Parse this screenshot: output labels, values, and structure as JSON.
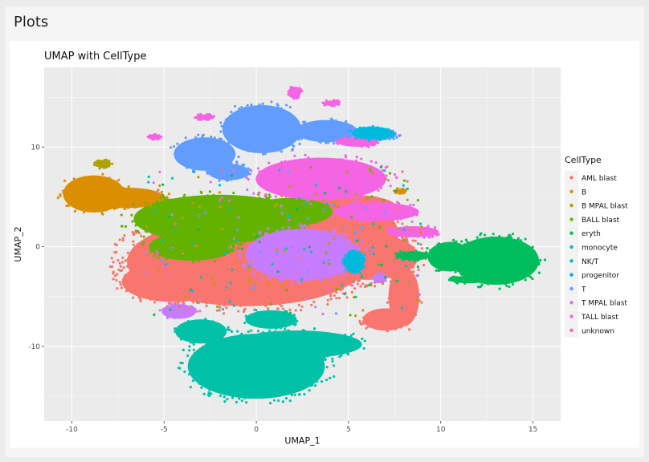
{
  "pane": {
    "title": "Plots"
  },
  "chart_data": {
    "type": "scatter",
    "title": "UMAP with CellType",
    "xlabel": "UMAP_1",
    "ylabel": "UMAP_2",
    "xlim": [
      -11.5,
      16.5
    ],
    "ylim": [
      -17.5,
      18
    ],
    "xticks": [
      -10,
      -5,
      0,
      5,
      10,
      15
    ],
    "xtick_labels": [
      "-10",
      "-5",
      "0",
      "5",
      "10",
      "15"
    ],
    "yticks": [
      -10,
      0,
      10
    ],
    "ytick_labels": [
      "-10",
      "0",
      "10"
    ],
    "grid": true,
    "background": "#ebebeb",
    "legend": {
      "title": "CellType",
      "position": "right",
      "entries": [
        {
          "label": "AML blast",
          "color": "#F8766D"
        },
        {
          "label": "B",
          "color": "#DB8E00"
        },
        {
          "label": "B MPAL blast",
          "color": "#AEA200"
        },
        {
          "label": "BALL blast",
          "color": "#64B200"
        },
        {
          "label": "eryth",
          "color": "#00BD5C"
        },
        {
          "label": "monocyte",
          "color": "#00C1A7"
        },
        {
          "label": "NK/T",
          "color": "#00BADE"
        },
        {
          "label": "progenitor",
          "color": "#00A6FF"
        },
        {
          "label": "T",
          "color": "#619CFF"
        },
        {
          "label": "T MPAL blast",
          "color": "#C77CFF"
        },
        {
          "label": "TALL blast",
          "color": "#F564E3"
        },
        {
          "label": "unknown",
          "color": "#FF64B0"
        }
      ]
    },
    "clusters": [
      {
        "name": "AML blast",
        "color": "#F8766D",
        "shapes": [
          {
            "cx": -0.5,
            "cy": -1.5,
            "rx": 7.0,
            "ry": 4.8
          },
          {
            "cx": 3.5,
            "cy": 1.5,
            "rx": 4.5,
            "ry": 3.5
          },
          {
            "cx": -4.5,
            "cy": -3.5,
            "rx": 3.0,
            "ry": 2.2
          },
          {
            "cx": 6.0,
            "cy": -1.0,
            "rx": 3.0,
            "ry": 2.5
          },
          {
            "cx": 8.0,
            "cy": -5.0,
            "rx": 0.9,
            "ry": 3.2
          },
          {
            "cx": 7.0,
            "cy": -7.3,
            "rx": 1.3,
            "ry": 1.2
          },
          {
            "cx": 5.5,
            "cy": 3.5,
            "rx": 2.5,
            "ry": 1.8
          }
        ]
      },
      {
        "name": "B",
        "color": "#DB8E00",
        "shapes": [
          {
            "cx": -8.8,
            "cy": 5.3,
            "rx": 1.8,
            "ry": 2.0
          },
          {
            "cx": -7.0,
            "cy": 4.9,
            "rx": 2.2,
            "ry": 1.1
          },
          {
            "cx": -5.0,
            "cy": 4.3,
            "rx": 1.2,
            "ry": 0.6
          },
          {
            "cx": 7.8,
            "cy": 5.6,
            "rx": 0.3,
            "ry": 0.25
          }
        ]
      },
      {
        "name": "B MPAL blast",
        "color": "#AEA200",
        "shapes": [
          {
            "cx": -8.3,
            "cy": 8.3,
            "rx": 0.45,
            "ry": 0.45
          }
        ]
      },
      {
        "name": "BALL blast",
        "color": "#64B200",
        "shapes": [
          {
            "cx": -2.0,
            "cy": 2.8,
            "rx": 5.0,
            "ry": 2.6
          },
          {
            "cx": 1.8,
            "cy": 3.5,
            "rx": 2.5,
            "ry": 1.5
          },
          {
            "cx": -3.5,
            "cy": 0.0,
            "rx": 2.5,
            "ry": 1.5
          }
        ]
      },
      {
        "name": "T",
        "color": "#619CFF",
        "shapes": [
          {
            "cx": 0.3,
            "cy": 11.8,
            "rx": 2.3,
            "ry": 2.6
          },
          {
            "cx": -2.8,
            "cy": 9.3,
            "rx": 1.8,
            "ry": 1.8
          },
          {
            "cx": 3.8,
            "cy": 11.6,
            "rx": 1.8,
            "ry": 1.2
          },
          {
            "cx": 6.5,
            "cy": 11.3,
            "rx": 1.2,
            "ry": 0.7
          },
          {
            "cx": -1.5,
            "cy": 7.5,
            "rx": 1.2,
            "ry": 0.9
          }
        ]
      },
      {
        "name": "TALL blast",
        "color": "#F564E3",
        "shapes": [
          {
            "cx": 3.5,
            "cy": 6.8,
            "rx": 3.8,
            "ry": 2.3
          },
          {
            "cx": 6.5,
            "cy": 3.5,
            "rx": 2.5,
            "ry": 1.0
          },
          {
            "cx": 8.5,
            "cy": 1.5,
            "rx": 1.5,
            "ry": 0.6
          },
          {
            "cx": 2.1,
            "cy": 15.5,
            "rx": 0.35,
            "ry": 0.6
          },
          {
            "cx": 4.1,
            "cy": 14.4,
            "rx": 0.45,
            "ry": 0.3
          },
          {
            "cx": -2.8,
            "cy": 13.0,
            "rx": 0.5,
            "ry": 0.3
          },
          {
            "cx": -5.5,
            "cy": 11.0,
            "rx": 0.35,
            "ry": 0.25
          },
          {
            "cx": 5.5,
            "cy": 10.5,
            "rx": 1.2,
            "ry": 0.5
          }
        ]
      },
      {
        "name": "T MPAL blast",
        "color": "#C77CFF",
        "shapes": [
          {
            "cx": 2.5,
            "cy": -0.8,
            "rx": 3.3,
            "ry": 2.8
          },
          {
            "cx": -4.2,
            "cy": -6.5,
            "rx": 1.0,
            "ry": 0.8
          },
          {
            "cx": 6.7,
            "cy": -3.2,
            "rx": 0.4,
            "ry": 0.5
          }
        ]
      },
      {
        "name": "monocyte",
        "color": "#00C1A7",
        "shapes": [
          {
            "cx": 0.0,
            "cy": -12.0,
            "rx": 4.0,
            "ry": 3.5
          },
          {
            "cx": 2.2,
            "cy": -9.8,
            "rx": 3.8,
            "ry": 1.5
          },
          {
            "cx": -3.0,
            "cy": -8.5,
            "rx": 1.5,
            "ry": 1.3
          },
          {
            "cx": 0.8,
            "cy": -7.3,
            "rx": 1.5,
            "ry": 1.0
          }
        ]
      },
      {
        "name": "NK/T",
        "color": "#00BADE",
        "shapes": [
          {
            "cx": 6.3,
            "cy": 11.4,
            "rx": 1.2,
            "ry": 0.7
          },
          {
            "cx": 5.3,
            "cy": -1.5,
            "rx": 0.6,
            "ry": 1.3
          }
        ]
      },
      {
        "name": "eryth",
        "color": "#00BD5C",
        "shapes": [
          {
            "cx": 13.0,
            "cy": -1.4,
            "rx": 2.5,
            "ry": 2.6
          },
          {
            "cx": 10.5,
            "cy": -1.0,
            "rx": 1.3,
            "ry": 1.6
          },
          {
            "cx": 8.5,
            "cy": -0.9,
            "rx": 1.0,
            "ry": 0.5
          },
          {
            "cx": 11.5,
            "cy": -3.3,
            "rx": 1.0,
            "ry": 0.4
          }
        ]
      }
    ]
  }
}
